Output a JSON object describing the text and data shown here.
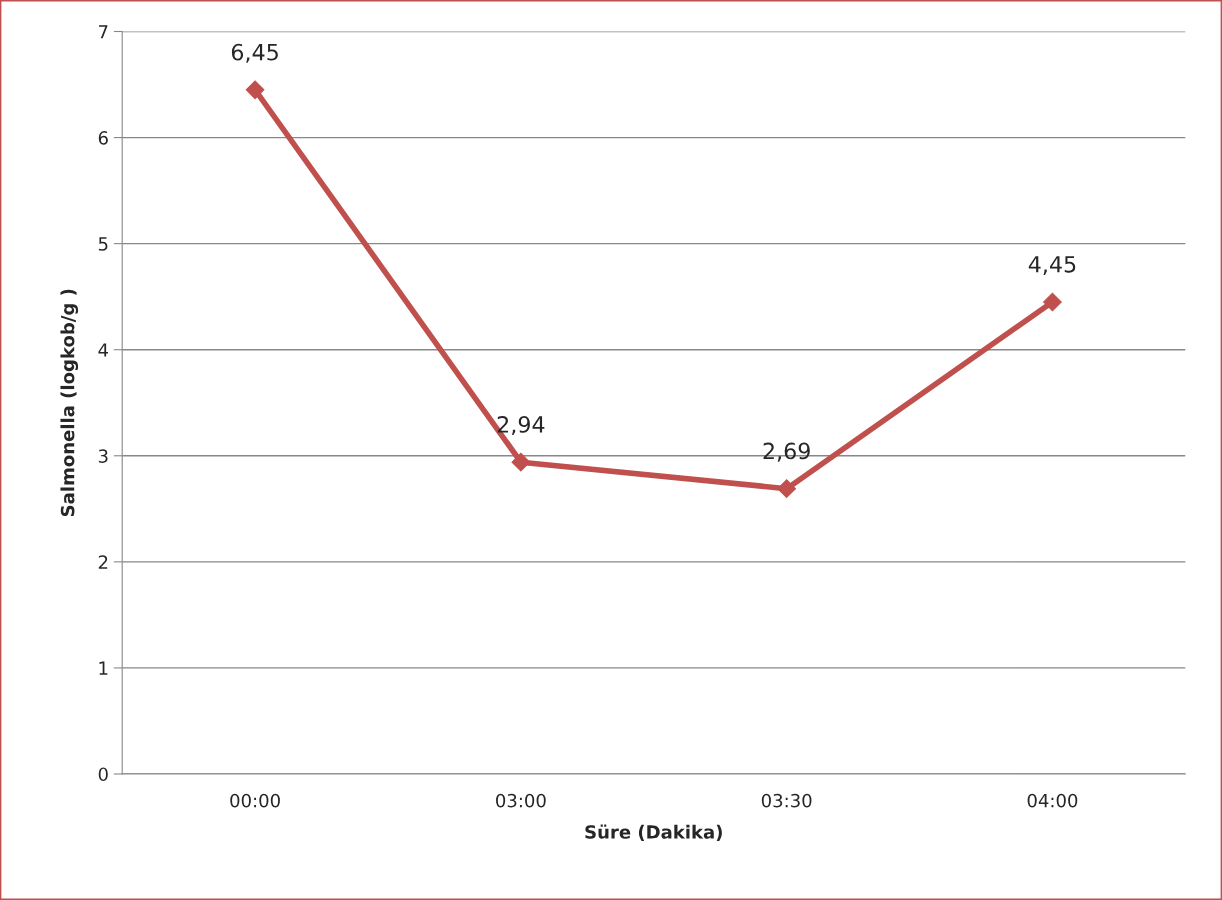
{
  "chart_data": {
    "type": "line",
    "xlabel": "Süre (Dakika)",
    "ylabel": "Salmonella (logkob/g )",
    "categories": [
      "00:00",
      "03:00",
      "03:30",
      "04:00"
    ],
    "series": [
      {
        "color": "#c0504d",
        "values": [
          6.45,
          2.94,
          2.69,
          4.45
        ],
        "value_labels": [
          "6,45",
          "2,94",
          "2,69",
          "4,45"
        ]
      }
    ],
    "ylim": [
      0,
      7
    ],
    "yticks": [
      0,
      1,
      2,
      3,
      4,
      5,
      6,
      7
    ],
    "grid": "y",
    "marker": "diamond",
    "line_style": "solid",
    "legend": false
  }
}
